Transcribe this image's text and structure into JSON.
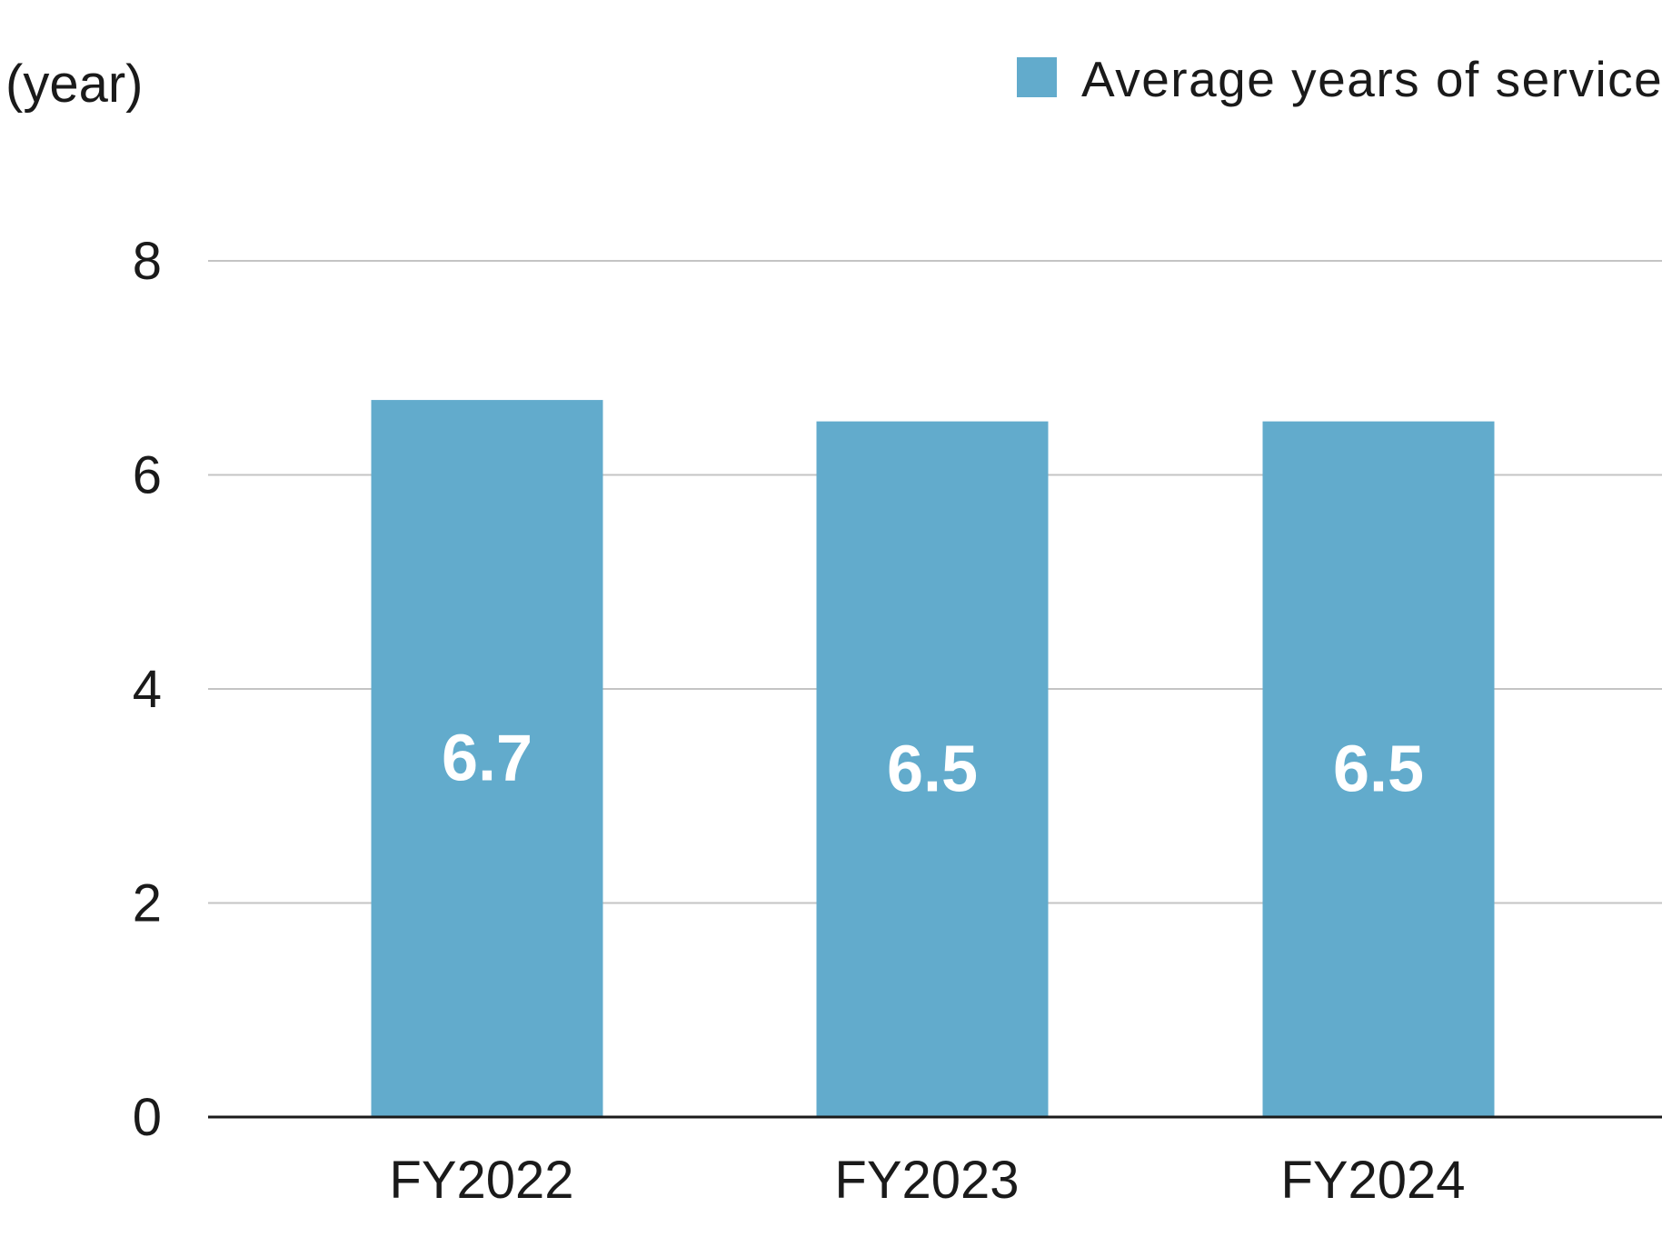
{
  "chart_data": {
    "type": "bar",
    "ylabel": "(year)",
    "categories": [
      "FY2022",
      "FY2023",
      "FY2024"
    ],
    "series": [
      {
        "name": "Average years of service",
        "values": [
          6.7,
          6.5,
          6.5
        ],
        "color": "#62abcc"
      }
    ],
    "data_labels": [
      "6.7",
      "6.5",
      "6.5"
    ],
    "y_ticks": [
      "0",
      "2",
      "4",
      "6",
      "8"
    ],
    "ylim": [
      0,
      8
    ],
    "grid": true,
    "legend_position": "top-right"
  }
}
